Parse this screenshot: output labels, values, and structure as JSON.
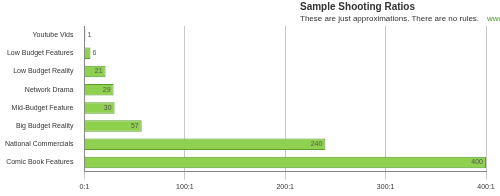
{
  "chart_data": {
    "type": "bar",
    "orientation": "horizontal",
    "title": "Sample Shooting Ratios",
    "subtitle": "These are just approximations. There are no rules.",
    "annotation": "www.stevestockman.com",
    "categories": [
      "Youtube Vids",
      "Low Budget Features",
      "Low Budget Reality",
      "Network Drama",
      "Mid-Budget Feature",
      "Big Budget Reality",
      "National Commercials",
      "Comic Book Features"
    ],
    "values": [
      1,
      6,
      21,
      29,
      30,
      57,
      240,
      400
    ],
    "color": "#8fd14f",
    "xlim": [
      0,
      400
    ],
    "xticks": [
      {
        "value": 0,
        "label": "0:1"
      },
      {
        "value": 100,
        "label": "100:1"
      },
      {
        "value": 200,
        "label": "200:1"
      },
      {
        "value": 300,
        "label": "300:1"
      },
      {
        "value": 400,
        "label": "400:1"
      }
    ],
    "grid": true,
    "data_labels": true
  }
}
